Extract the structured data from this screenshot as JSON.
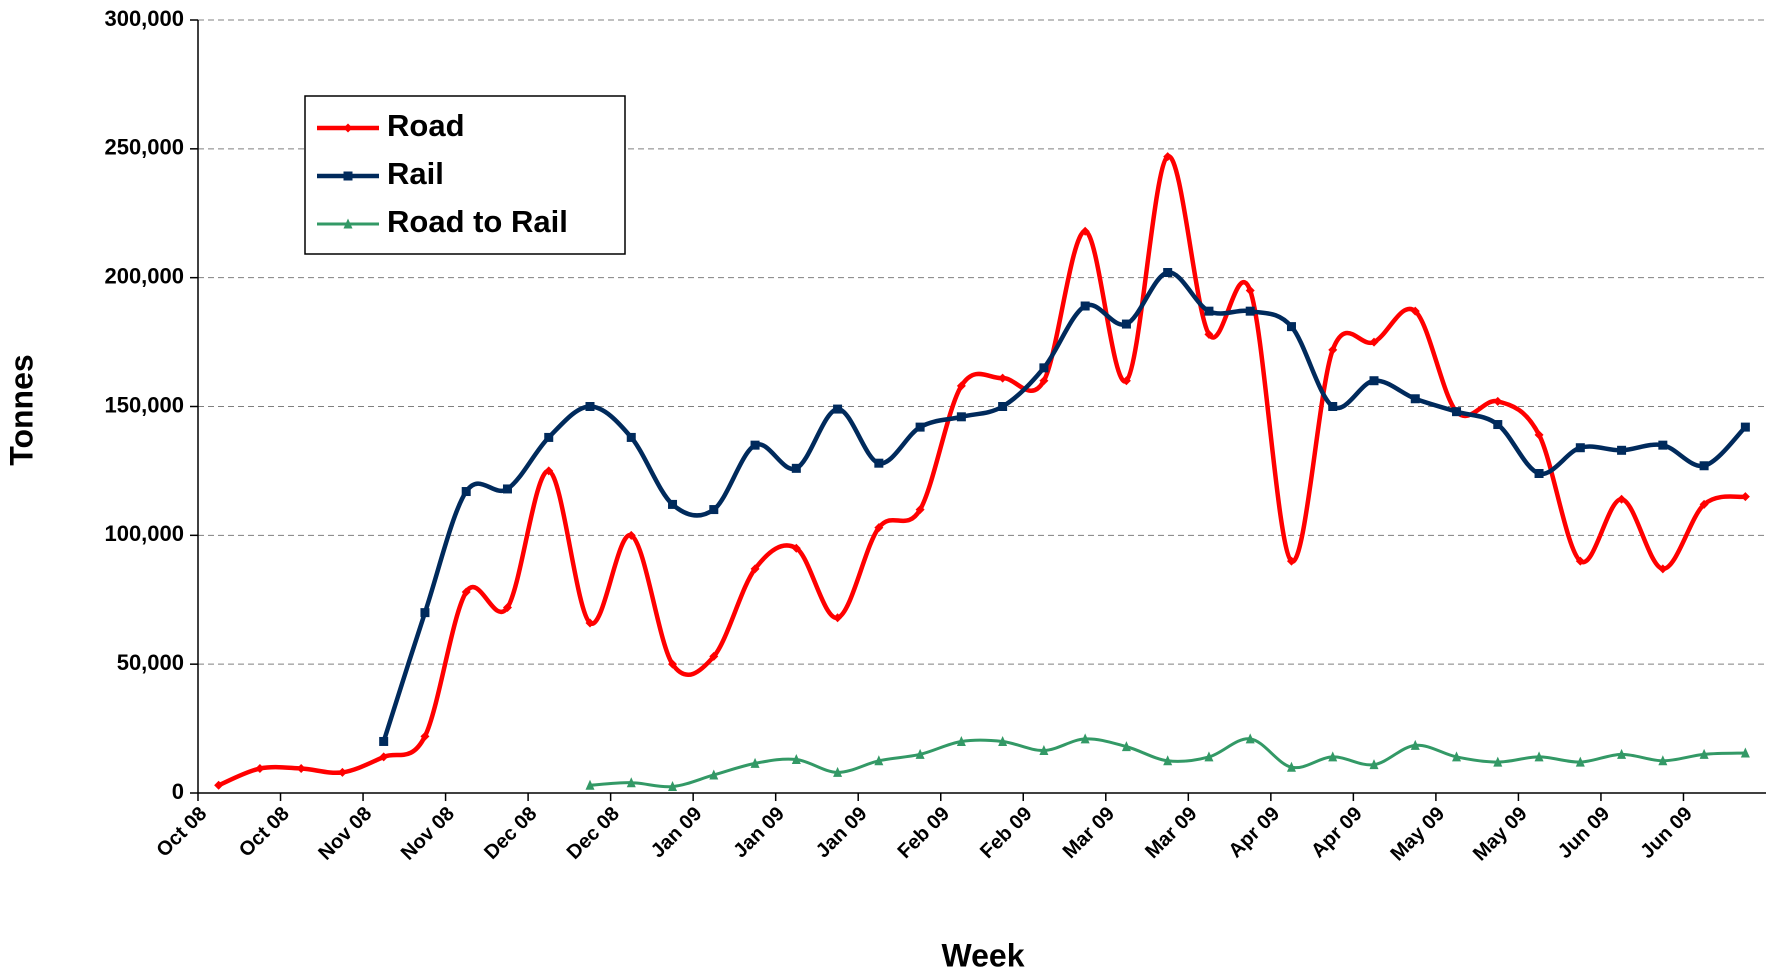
{
  "chart_data": {
    "type": "line",
    "ylabel": "Tonnes",
    "xlabel": "Week",
    "categories": [
      "Oct 08",
      null,
      "Oct 08",
      null,
      "Nov 08",
      null,
      "Nov 08",
      null,
      "Dec 08",
      null,
      "Dec 08",
      null,
      "Jan 09",
      null,
      "Jan 09",
      null,
      "Jan 09",
      null,
      "Feb 09",
      null,
      "Feb 09",
      null,
      "Mar 09",
      null,
      "Mar 09",
      null,
      "Apr 09",
      null,
      "Apr 09",
      null,
      "May 09",
      null,
      "May 09",
      null,
      "Jun 09",
      null,
      "Jun 09",
      null
    ],
    "series": [
      {
        "name": "Road",
        "color": "#ff0000",
        "marker": "diamond",
        "values": [
          3000,
          9500,
          9500,
          8000,
          14000,
          22000,
          78000,
          72000,
          125000,
          66000,
          100000,
          50000,
          53000,
          87000,
          95000,
          68000,
          103000,
          110000,
          158000,
          161000,
          160000,
          218000,
          160000,
          247000,
          178000,
          195000,
          90000,
          172000,
          175000,
          187000,
          148000,
          152000,
          139000,
          90000,
          114000,
          87000,
          112000,
          115000
        ]
      },
      {
        "name": "Rail",
        "color": "#002a5c",
        "marker": "square",
        "values": [
          null,
          null,
          null,
          null,
          20000,
          70000,
          117000,
          118000,
          138000,
          150000,
          138000,
          112000,
          110000,
          135000,
          126000,
          149000,
          128000,
          142000,
          146000,
          150000,
          165000,
          189000,
          182000,
          202000,
          187000,
          187000,
          181000,
          150000,
          160000,
          153000,
          148000,
          143000,
          124000,
          134000,
          133000,
          135000,
          127000,
          142000
        ]
      },
      {
        "name": "Road to Rail",
        "color": "#339966",
        "marker": "triangle",
        "values": [
          null,
          null,
          null,
          null,
          null,
          null,
          null,
          null,
          null,
          3000,
          4000,
          2500,
          7000,
          11500,
          13000,
          8000,
          12500,
          15000,
          20000,
          20000,
          16500,
          21000,
          18000,
          12500,
          14000,
          21000,
          10000,
          14000,
          11000,
          18500,
          14000,
          12000,
          14000,
          12000,
          15000,
          12500,
          15000,
          15500
        ]
      }
    ],
    "ylim": [
      0,
      300000
    ],
    "yticks": [
      0,
      {
        "value": 50000,
        "label": "50,000"
      },
      {
        "value": 100000,
        "label": "100,000"
      },
      {
        "value": 150000,
        "label": "150,000"
      },
      {
        "value": 200000,
        "label": "200,000"
      },
      {
        "value": 250000,
        "label": "250,000"
      },
      {
        "value": 300000,
        "label": "300,000"
      }
    ],
    "grid": true,
    "smooth": true,
    "legend": "upper left"
  }
}
